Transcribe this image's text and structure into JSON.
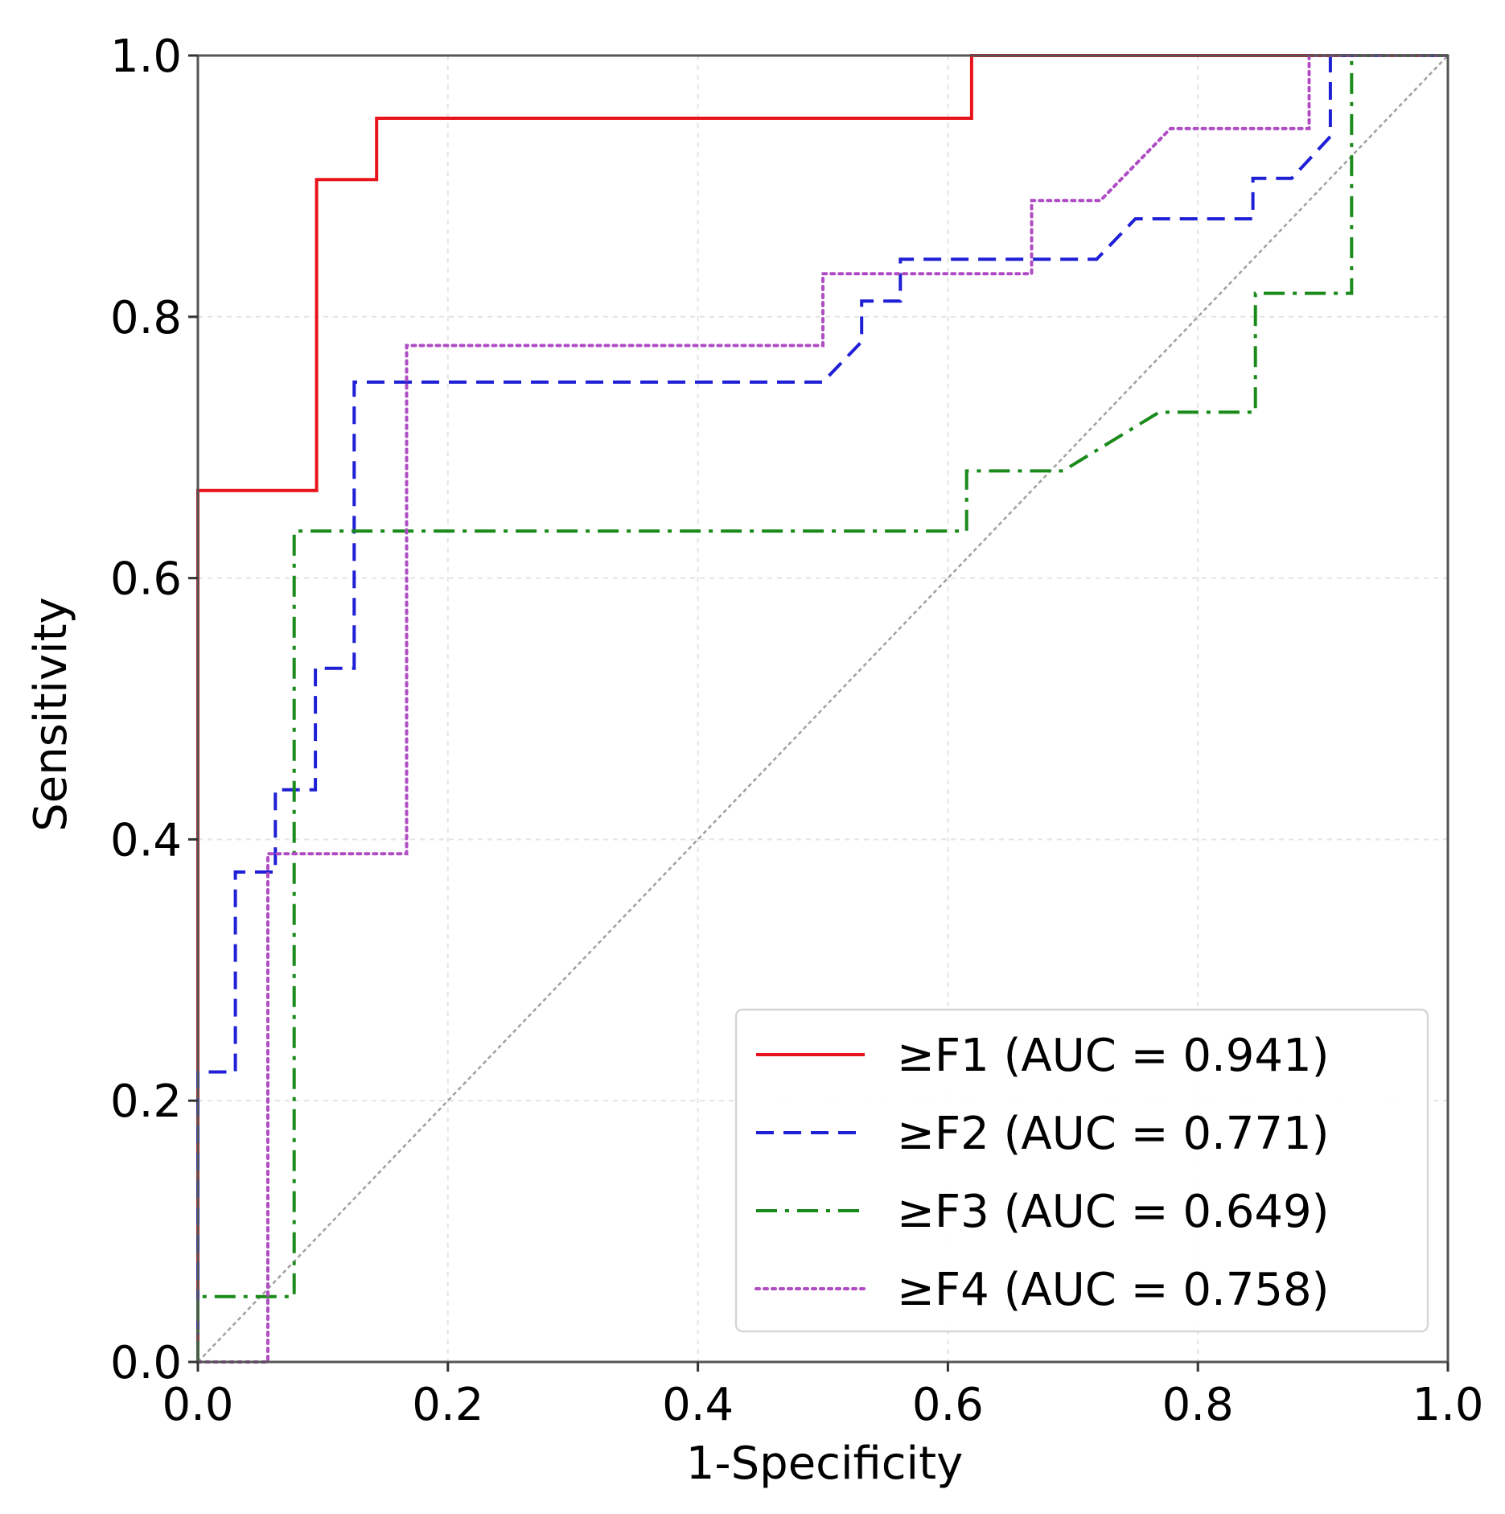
{
  "chart_data": {
    "type": "line",
    "title": "",
    "xlabel": "1-Specificity",
    "ylabel": "Sensitivity",
    "xlim": [
      0.0,
      1.0
    ],
    "ylim": [
      0.0,
      1.0
    ],
    "xticks": [
      "0.0",
      "0.2",
      "0.4",
      "0.6",
      "0.8",
      "1.0"
    ],
    "yticks": [
      "0.0",
      "0.2",
      "0.4",
      "0.6",
      "0.8",
      "1.0"
    ],
    "grid": true,
    "legend_position": "bottom-right",
    "reference_line": {
      "x": [
        0,
        1
      ],
      "y": [
        0,
        1
      ],
      "color": "#a0a0a0"
    },
    "series": [
      {
        "name": "≥F1 (AUC = 0.941)",
        "color": "#e8131b",
        "style": "solid",
        "x": [
          0,
          0,
          0.095,
          0.095,
          0.143,
          0.143,
          0.619,
          0.619,
          1.0
        ],
        "y": [
          0,
          0.667,
          0.667,
          0.905,
          0.905,
          0.952,
          0.952,
          1.0,
          1.0
        ]
      },
      {
        "name": "≥F2 (AUC = 0.771)",
        "color": "#1f1fd6",
        "style": "dashed",
        "x": [
          0,
          0,
          0.03,
          0.03,
          0.062,
          0.062,
          0.094,
          0.094,
          0.125,
          0.125,
          0.5,
          0.531,
          0.531,
          0.562,
          0.562,
          0.719,
          0.75,
          0.844,
          0.844,
          0.875,
          0.906,
          0.906,
          1.0
        ],
        "y": [
          0,
          0.222,
          0.222,
          0.375,
          0.375,
          0.438,
          0.438,
          0.531,
          0.531,
          0.75,
          0.75,
          0.781,
          0.812,
          0.812,
          0.844,
          0.844,
          0.875,
          0.875,
          0.906,
          0.906,
          0.938,
          1.0,
          1.0
        ]
      },
      {
        "name": "≥F3 (AUC = 0.649)",
        "color": "#1a8a1a",
        "style": "dashdot",
        "x": [
          0,
          0,
          0.077,
          0.077,
          0.615,
          0.615,
          0.692,
          0.769,
          0.846,
          0.846,
          0.923,
          0.923,
          1.0
        ],
        "y": [
          0,
          0.05,
          0.05,
          0.636,
          0.636,
          0.682,
          0.682,
          0.727,
          0.727,
          0.818,
          0.818,
          1.0,
          1.0
        ]
      },
      {
        "name": "≥F4 (AUC = 0.758)",
        "color": "#b04cc4",
        "style": "dotted",
        "x": [
          0,
          0.056,
          0.056,
          0.167,
          0.167,
          0.5,
          0.5,
          0.667,
          0.667,
          0.722,
          0.778,
          0.889,
          0.889,
          1.0
        ],
        "y": [
          0,
          0,
          0.389,
          0.389,
          0.778,
          0.778,
          0.833,
          0.833,
          0.889,
          0.889,
          0.944,
          0.944,
          1.0,
          1.0
        ]
      }
    ]
  }
}
